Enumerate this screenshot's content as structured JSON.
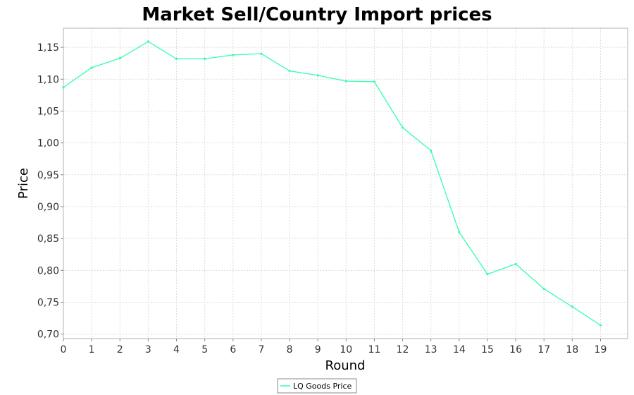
{
  "chart_data": {
    "type": "line",
    "title": "Market Sell/Country Import prices",
    "xlabel": "Round",
    "ylabel": "Price",
    "x": [
      0,
      1,
      2,
      3,
      4,
      5,
      6,
      7,
      8,
      9,
      10,
      11,
      12,
      13,
      14,
      15,
      16,
      17,
      18,
      19
    ],
    "x_tick_labels": [
      "0",
      "1",
      "2",
      "3",
      "4",
      "5",
      "6",
      "7",
      "8",
      "9",
      "10",
      "11",
      "12",
      "13",
      "14",
      "15",
      "16",
      "17",
      "18",
      "19"
    ],
    "xlim": [
      0,
      19.96
    ],
    "ylim": [
      0.693,
      1.18
    ],
    "y_ticks": [
      0.7,
      0.75,
      0.8,
      0.85,
      0.9,
      0.95,
      1.0,
      1.05,
      1.1,
      1.15
    ],
    "y_tick_labels": [
      "0,70",
      "0,75",
      "0,80",
      "0,85",
      "0,90",
      "0,95",
      "1,00",
      "1,05",
      "1,10",
      "1,15"
    ],
    "grid": true,
    "legend_position": "bottom-center",
    "series": [
      {
        "name": "LQ Goods Price",
        "color": "#33ffaa",
        "values": [
          1.087,
          1.118,
          1.133,
          1.159,
          1.132,
          1.132,
          1.138,
          1.14,
          1.113,
          1.106,
          1.097,
          1.096,
          1.024,
          0.988,
          0.86,
          0.794,
          0.81,
          0.771,
          0.743,
          0.714
        ]
      }
    ]
  }
}
